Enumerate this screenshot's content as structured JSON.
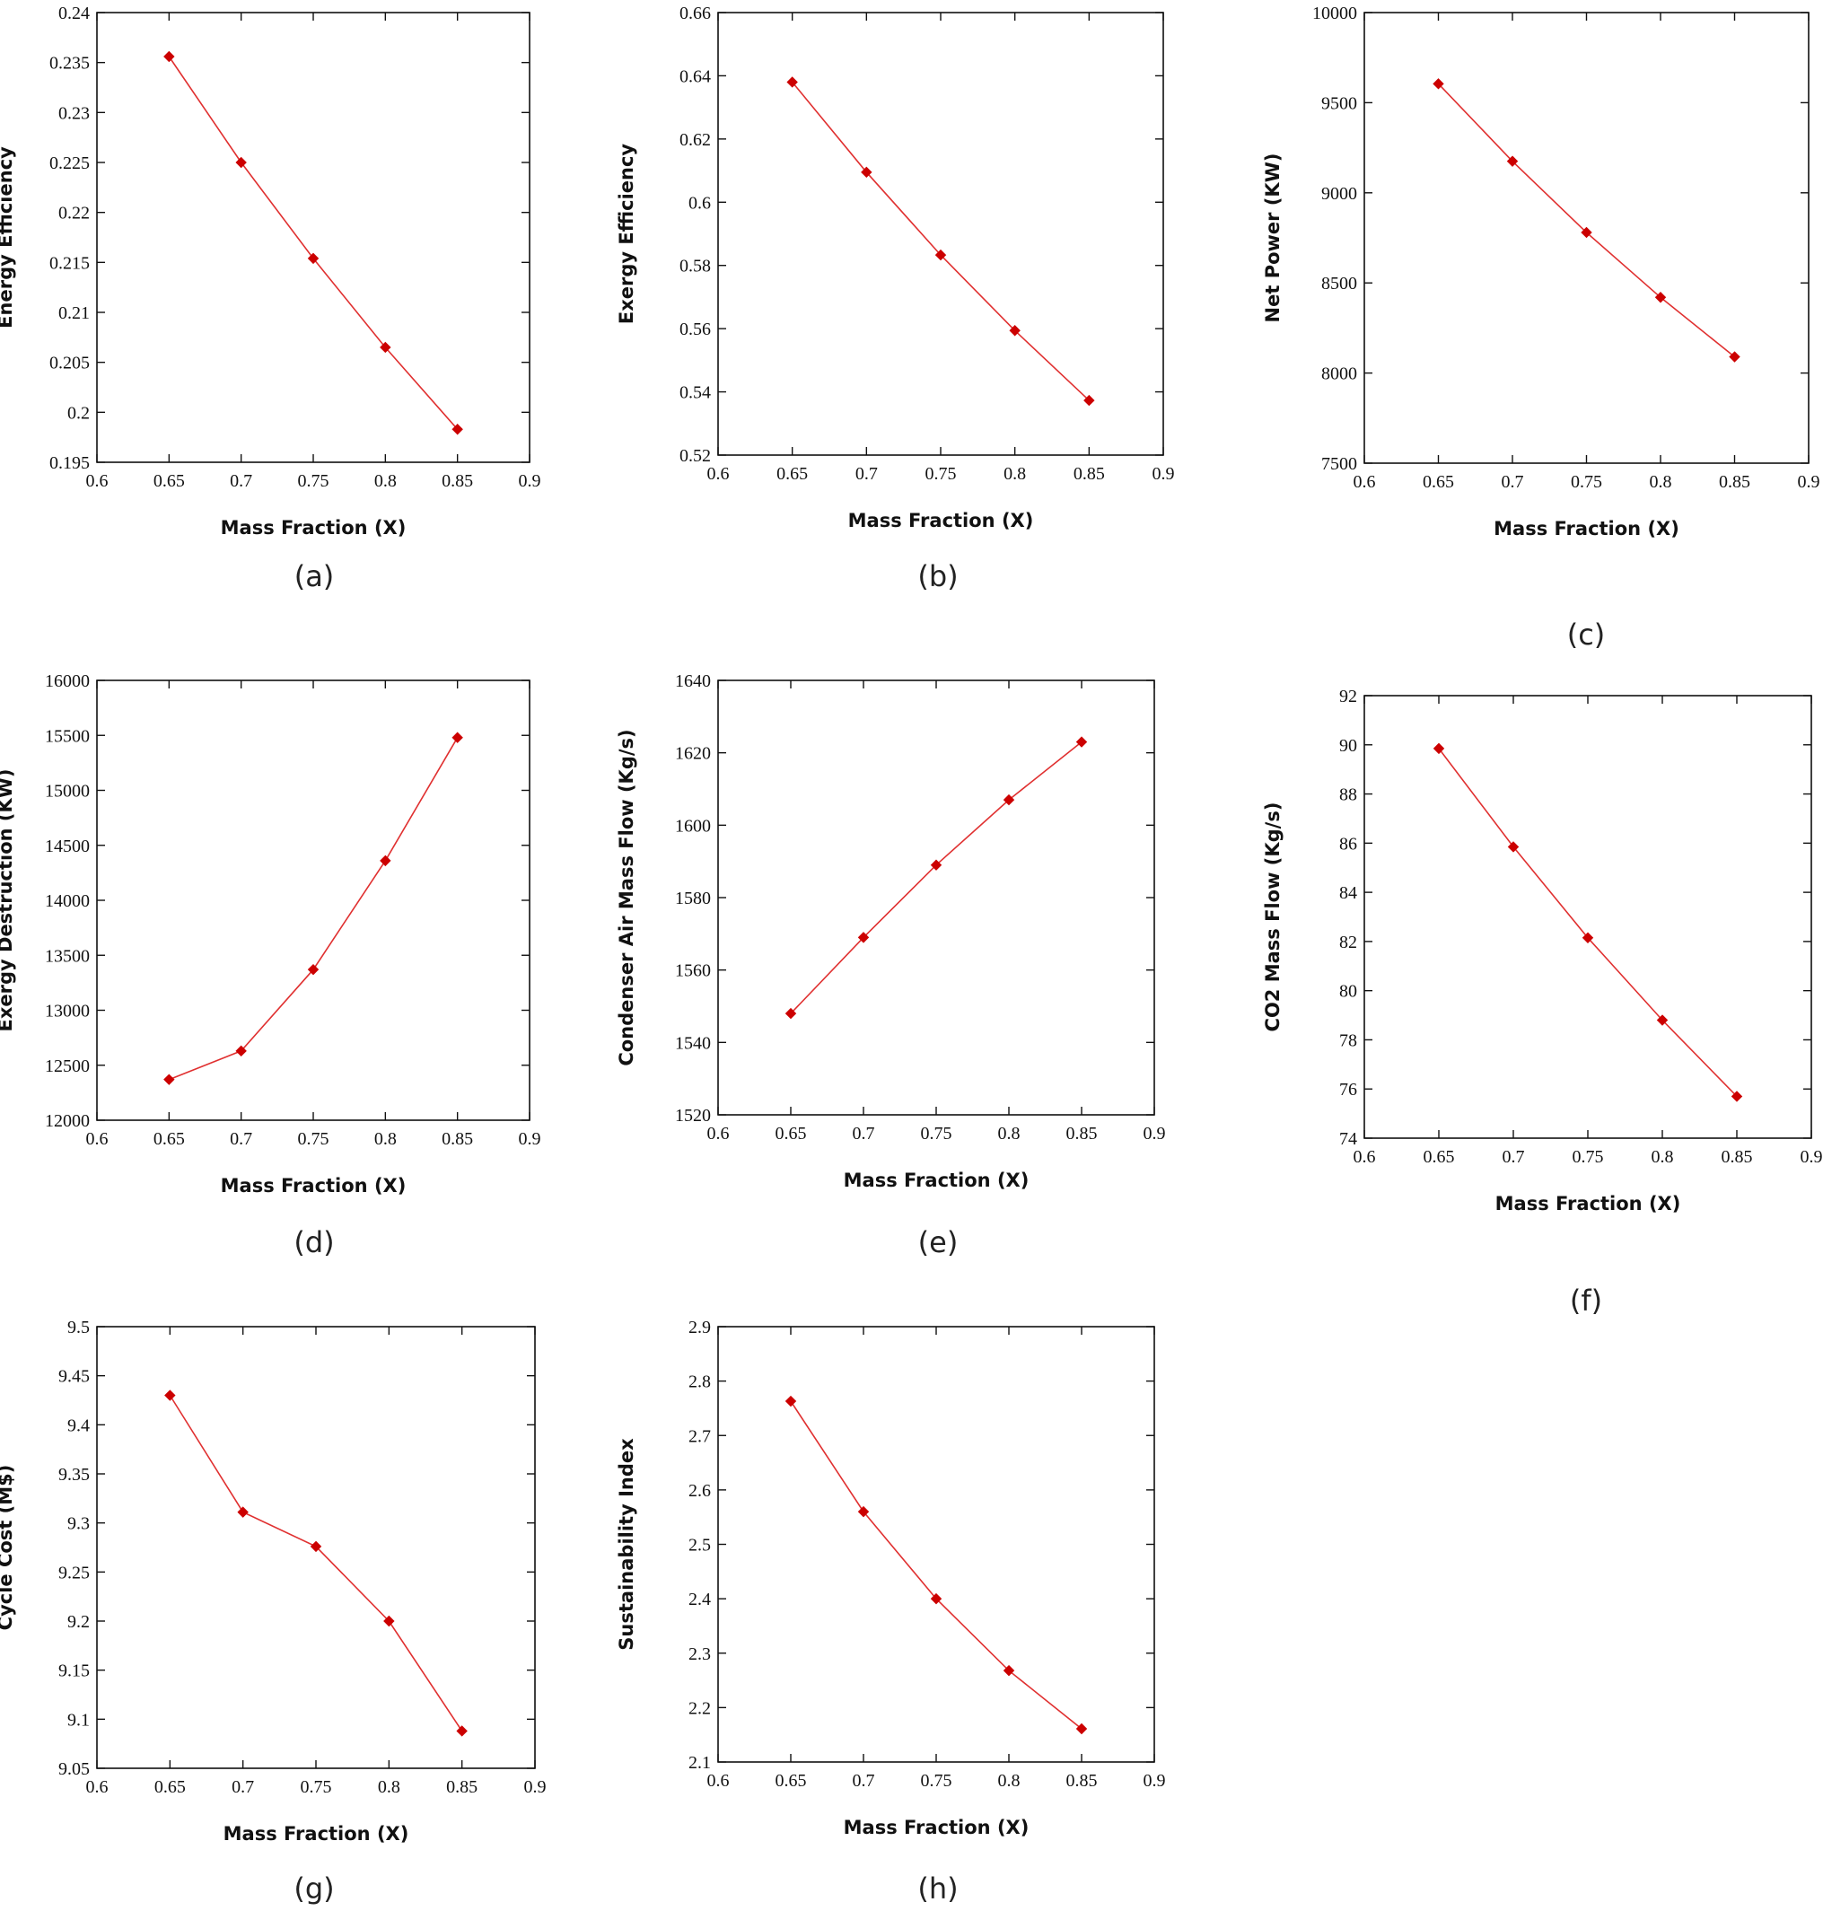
{
  "figure": {
    "marker_color": "#cc0000",
    "line_color": "#e03030"
  },
  "chart_data": [
    {
      "id": "a",
      "type": "line",
      "caption": "(a)",
      "xlabel": "Mass Fraction (X)",
      "ylabel": "Energy Efficiency",
      "xlim": [
        0.6,
        0.9
      ],
      "ylim": [
        0.195,
        0.24
      ],
      "xticks": [
        "0.6",
        "0.65",
        "0.7",
        "0.75",
        "0.8",
        "0.85",
        "0.9"
      ],
      "yticks": [
        "0.195",
        "0.2",
        "0.205",
        "0.21",
        "0.215",
        "0.22",
        "0.225",
        "0.23",
        "0.235",
        "0.24"
      ],
      "x": [
        0.65,
        0.7,
        0.75,
        0.8,
        0.85
      ],
      "y": [
        0.2356,
        0.225,
        0.2154,
        0.2065,
        0.1983
      ],
      "grid": false,
      "legend": false
    },
    {
      "id": "b",
      "type": "line",
      "caption": "(b)",
      "xlabel": "Mass Fraction (X)",
      "ylabel": "Exergy Efficiency",
      "xlim": [
        0.6,
        0.9
      ],
      "ylim": [
        0.52,
        0.66
      ],
      "xticks": [
        "0.6",
        "0.65",
        "0.7",
        "0.75",
        "0.8",
        "0.85",
        "0.9"
      ],
      "yticks": [
        "0.52",
        "0.54",
        "0.56",
        "0.58",
        "0.6",
        "0.62",
        "0.64",
        "0.66"
      ],
      "x": [
        0.65,
        0.7,
        0.75,
        0.8,
        0.85
      ],
      "y": [
        0.638,
        0.6095,
        0.5833,
        0.5594,
        0.5373
      ],
      "grid": false,
      "legend": false
    },
    {
      "id": "c",
      "type": "line",
      "caption": "(c)",
      "xlabel": "Mass Fraction (X)",
      "ylabel": "Net Power (KW)",
      "xlim": [
        0.6,
        0.9
      ],
      "ylim": [
        7500,
        10000
      ],
      "xticks": [
        "0.6",
        "0.65",
        "0.7",
        "0.75",
        "0.8",
        "0.85",
        "0.9"
      ],
      "yticks": [
        "7500",
        "8000",
        "8500",
        "9000",
        "9500",
        "10000"
      ],
      "x": [
        0.65,
        0.7,
        0.75,
        0.8,
        0.85
      ],
      "y": [
        9605,
        9175,
        8780,
        8420,
        8090
      ],
      "grid": false,
      "legend": false
    },
    {
      "id": "d",
      "type": "line",
      "caption": "(d)",
      "xlabel": "Mass Fraction (X)",
      "ylabel": "Exergy Destruction (KW)",
      "xlim": [
        0.6,
        0.9
      ],
      "ylim": [
        12000,
        16000
      ],
      "xticks": [
        "0.6",
        "0.65",
        "0.7",
        "0.75",
        "0.8",
        "0.85",
        "0.9"
      ],
      "yticks": [
        "12000",
        "12500",
        "13000",
        "13500",
        "14000",
        "14500",
        "15000",
        "15500",
        "16000"
      ],
      "x": [
        0.65,
        0.7,
        0.75,
        0.8,
        0.85
      ],
      "y": [
        12370,
        12630,
        13370,
        14360,
        15480
      ],
      "grid": false,
      "legend": false
    },
    {
      "id": "e",
      "type": "line",
      "caption": "(e)",
      "xlabel": "Mass Fraction (X)",
      "ylabel": "Condenser Air Mass Flow (Kg/s)",
      "xlim": [
        0.6,
        0.9
      ],
      "ylim": [
        1520,
        1640
      ],
      "xticks": [
        "0.6",
        "0.65",
        "0.7",
        "0.75",
        "0.8",
        "0.85",
        "0.9"
      ],
      "yticks": [
        "1520",
        "1540",
        "1560",
        "1580",
        "1600",
        "1620",
        "1640"
      ],
      "x": [
        0.65,
        0.7,
        0.75,
        0.8,
        0.85
      ],
      "y": [
        1548,
        1569,
        1589,
        1607,
        1623
      ],
      "grid": false,
      "legend": false
    },
    {
      "id": "f",
      "type": "line",
      "caption": "(f)",
      "xlabel": "Mass Fraction (X)",
      "ylabel": "CO2 Mass Flow (Kg/s)",
      "xlim": [
        0.6,
        0.9
      ],
      "ylim": [
        74,
        92
      ],
      "xticks": [
        "0.6",
        "0.65",
        "0.7",
        "0.75",
        "0.8",
        "0.85",
        "0.9"
      ],
      "yticks": [
        "74",
        "76",
        "78",
        "80",
        "82",
        "84",
        "86",
        "88",
        "90",
        "92"
      ],
      "x": [
        0.65,
        0.7,
        0.75,
        0.8,
        0.85
      ],
      "y": [
        89.85,
        85.85,
        82.15,
        78.8,
        75.7
      ],
      "grid": false,
      "legend": false
    },
    {
      "id": "g",
      "type": "line",
      "caption": "(g)",
      "xlabel": "Mass Fraction (X)",
      "ylabel": "Cycle Cost (M$)",
      "xlim": [
        0.6,
        0.9
      ],
      "ylim": [
        9.05,
        9.5
      ],
      "xticks": [
        "0.6",
        "0.65",
        "0.7",
        "0.75",
        "0.8",
        "0.85",
        "0.9"
      ],
      "yticks": [
        "9.05",
        "9.1",
        "9.15",
        "9.2",
        "9.25",
        "9.3",
        "9.35",
        "9.4",
        "9.45",
        "9.5"
      ],
      "x": [
        0.65,
        0.7,
        0.75,
        0.8,
        0.85
      ],
      "y": [
        9.43,
        9.311,
        9.276,
        9.2,
        9.088
      ],
      "grid": false,
      "legend": false
    },
    {
      "id": "h",
      "type": "line",
      "caption": "(h)",
      "xlabel": "Mass Fraction (X)",
      "ylabel": "Sustainability Index",
      "xlim": [
        0.6,
        0.9
      ],
      "ylim": [
        2.1,
        2.9
      ],
      "xticks": [
        "0.6",
        "0.65",
        "0.7",
        "0.75",
        "0.8",
        "0.85",
        "0.9"
      ],
      "yticks": [
        "2.1",
        "2.2",
        "2.3",
        "2.4",
        "2.5",
        "2.6",
        "2.7",
        "2.8",
        "2.9"
      ],
      "x": [
        0.65,
        0.7,
        0.75,
        0.8,
        0.85
      ],
      "y": [
        2.763,
        2.56,
        2.4,
        2.268,
        2.161
      ],
      "grid": false,
      "legend": false
    }
  ]
}
